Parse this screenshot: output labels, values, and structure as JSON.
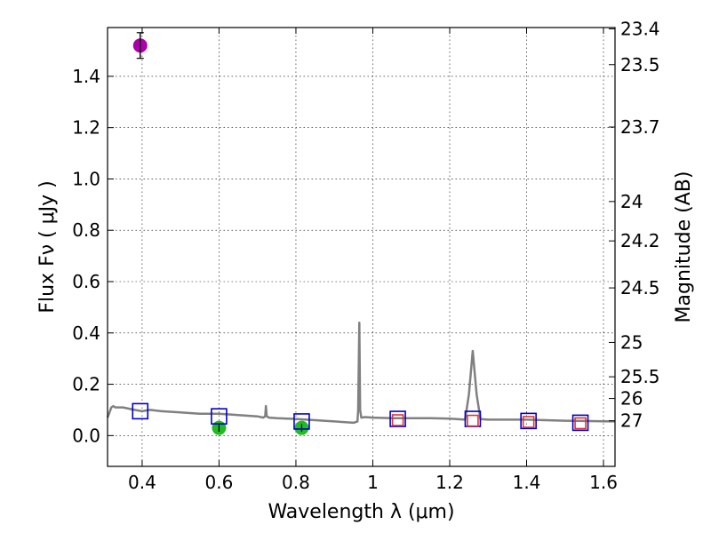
{
  "chart_data": {
    "type": "scatter",
    "xlabel": "Wavelength  λ (μm)",
    "ylabel": "Flux  Fν  ( μJy )",
    "y2label": "Magnitude (AB)",
    "xlim": [
      0.31,
      1.63
    ],
    "ylim": [
      -0.12,
      1.59
    ],
    "grid": true,
    "x_ticks": [
      0.4,
      0.6,
      0.8,
      1.0,
      1.2,
      1.4,
      1.6
    ],
    "x_tick_labels": [
      "0.4",
      "0.6",
      "0.8",
      "1",
      "1.2",
      "1.4",
      "1.6"
    ],
    "y_ticks": [
      0.0,
      0.2,
      0.4,
      0.6,
      0.8,
      1.0,
      1.2,
      1.4
    ],
    "y_tick_labels": [
      "0.0",
      "0.2",
      "0.4",
      "0.6",
      "0.8",
      "1.0",
      "1.2",
      "1.4"
    ],
    "mag_ticks": [
      23.4,
      23.5,
      23.7,
      24,
      24.2,
      24.5,
      25,
      25.5,
      26,
      27
    ],
    "mag_tick_labels": [
      "23.4",
      "23.5",
      "23.7",
      "24",
      "24.2",
      "24.5",
      "25",
      "25.5",
      "26",
      "27"
    ],
    "template_spectrum": {
      "color": "#808080",
      "x": [
        0.31,
        0.315,
        0.32,
        0.325,
        0.33,
        0.35,
        0.38,
        0.4,
        0.42,
        0.45,
        0.5,
        0.55,
        0.6,
        0.65,
        0.7,
        0.715,
        0.72,
        0.722,
        0.724,
        0.73,
        0.75,
        0.8,
        0.85,
        0.9,
        0.95,
        0.96,
        0.962,
        0.965,
        0.967,
        0.97,
        0.98,
        1.0,
        1.05,
        1.1,
        1.15,
        1.2,
        1.24,
        1.25,
        1.26,
        1.27,
        1.28,
        1.3,
        1.35,
        1.4,
        1.45,
        1.5,
        1.55,
        1.6,
        1.63
      ],
      "y": [
        0.07,
        0.09,
        0.11,
        0.115,
        0.11,
        0.11,
        0.1,
        0.095,
        0.1,
        0.095,
        0.09,
        0.085,
        0.085,
        0.08,
        0.075,
        0.07,
        0.075,
        0.115,
        0.075,
        0.07,
        0.068,
        0.065,
        0.06,
        0.055,
        0.05,
        0.055,
        0.1,
        0.44,
        0.1,
        0.07,
        0.072,
        0.07,
        0.068,
        0.068,
        0.068,
        0.066,
        0.062,
        0.16,
        0.33,
        0.16,
        0.064,
        0.062,
        0.062,
        0.062,
        0.06,
        0.058,
        0.057,
        0.056,
        0.055
      ]
    },
    "series": [
      {
        "marker": "circle",
        "color": "#aa00aa",
        "points": [
          {
            "x": 0.395,
            "y": 1.52,
            "err": 0.05
          }
        ]
      },
      {
        "marker": "circle",
        "color": "#22bb22",
        "points": [
          {
            "x": 0.6,
            "y": 0.03,
            "err": 0.015
          },
          {
            "x": 0.815,
            "y": 0.03,
            "err": 0.015
          }
        ]
      },
      {
        "marker": "open-square",
        "color": "#0000cc",
        "points": [
          {
            "x": 0.395,
            "y": 0.095
          },
          {
            "x": 0.6,
            "y": 0.075
          },
          {
            "x": 0.815,
            "y": 0.055
          },
          {
            "x": 1.065,
            "y": 0.065
          },
          {
            "x": 1.26,
            "y": 0.065
          },
          {
            "x": 1.405,
            "y": 0.057
          },
          {
            "x": 1.54,
            "y": 0.05
          }
        ]
      },
      {
        "marker": "open-square",
        "color": "#dd3333",
        "points": [
          {
            "x": 1.065,
            "y": 0.06
          },
          {
            "x": 1.26,
            "y": 0.058
          },
          {
            "x": 1.405,
            "y": 0.053
          },
          {
            "x": 1.54,
            "y": 0.048
          }
        ]
      }
    ]
  }
}
